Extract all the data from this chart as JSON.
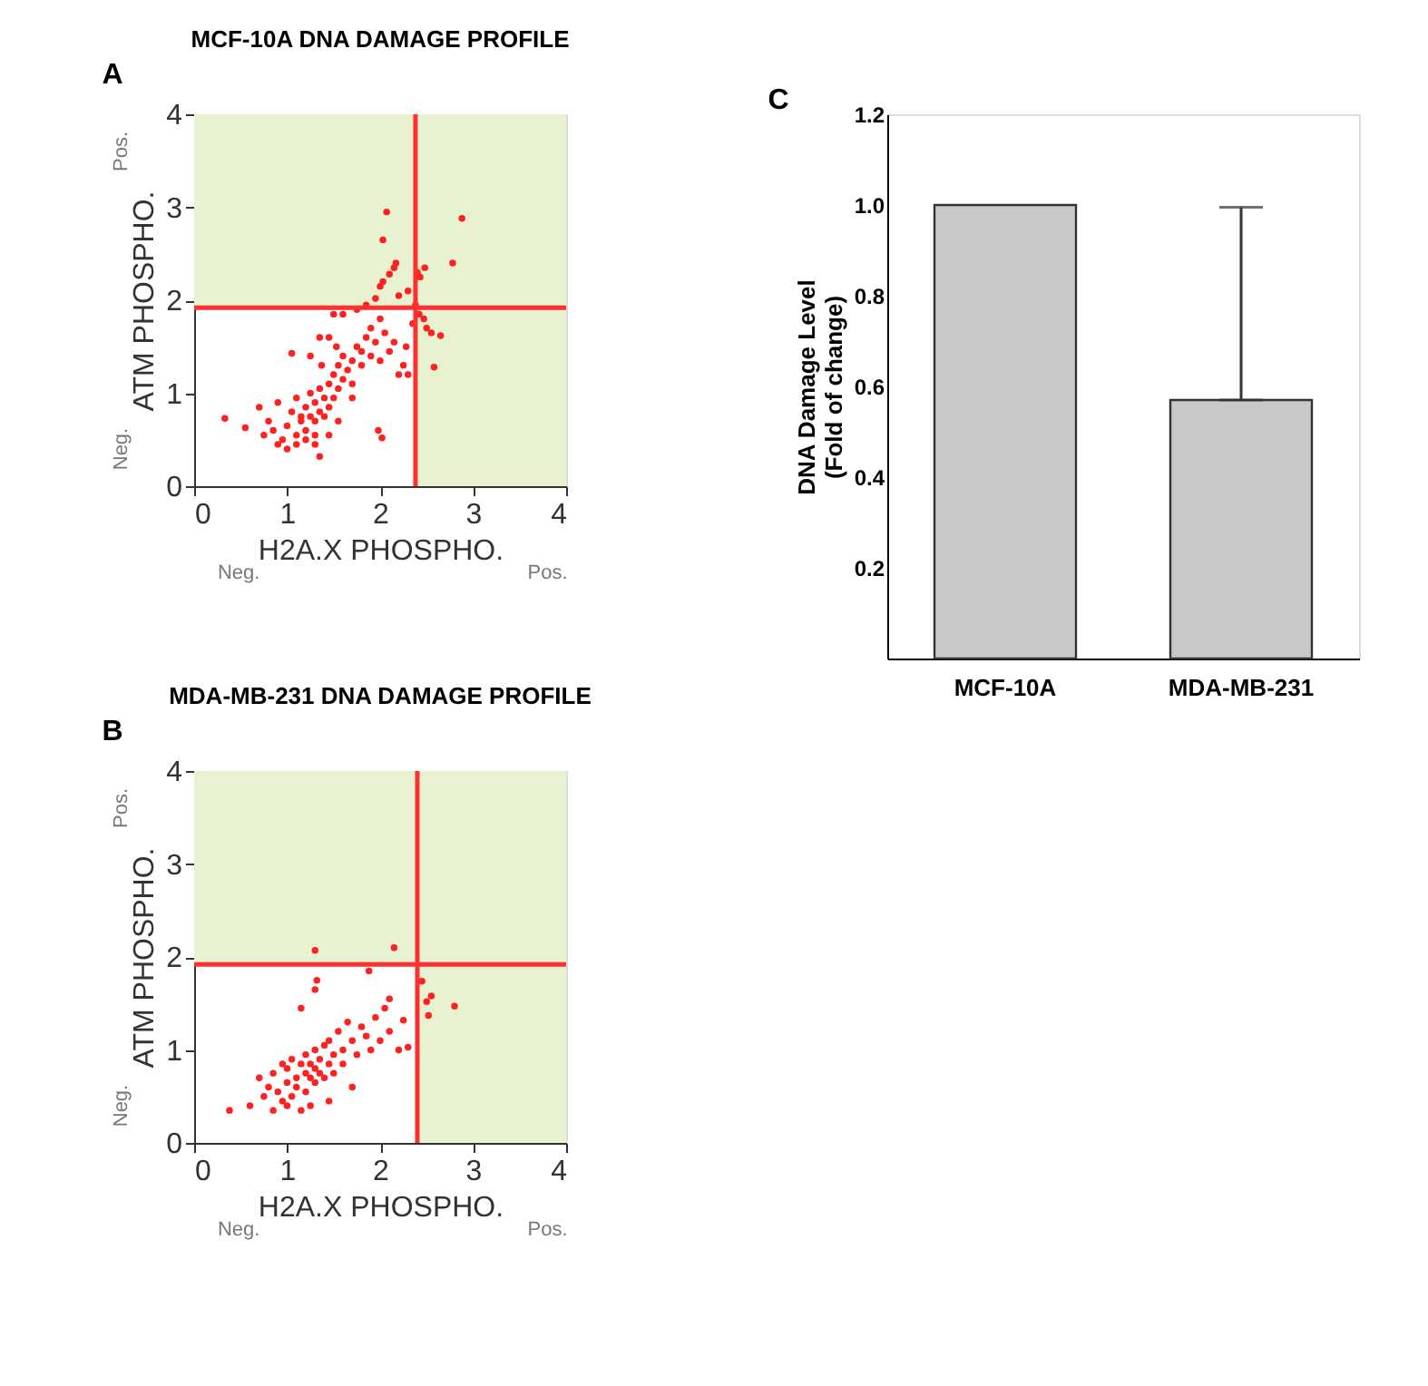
{
  "chart_data": [
    {
      "type": "scatter",
      "title": "MCF-10A DNA DAMAGE PROFILE",
      "xlabel": "H2A.X PHOSPHO.",
      "ylabel": "ATM PHOSPHO.",
      "annotations": [
        "A",
        "Neg.",
        "Pos.",
        "Neg.",
        "Pos."
      ],
      "xlim": [
        0,
        4
      ],
      "ylim": [
        0,
        4
      ],
      "xticks": [
        0,
        1,
        2,
        3,
        4
      ],
      "yticks": [
        0,
        1,
        2,
        3,
        4
      ],
      "grid": false,
      "marker": "circle",
      "ref_lines": [
        {
          "axis": "x",
          "value": 2.38,
          "color": "#ff3030"
        },
        {
          "axis": "y",
          "value": 1.92,
          "color": "#ff3030"
        }
      ],
      "bands": [
        {
          "axis": "y",
          "from": 1.92,
          "to": 4,
          "color": "#e8f2d0"
        },
        {
          "axis": "x",
          "from": 2.38,
          "to": 4,
          "color": "#e8f2d0"
        }
      ],
      "series": [
        {
          "color": "#ff2020",
          "x": [
            0.33,
            0.55,
            0.7,
            0.75,
            0.8,
            0.85,
            0.9,
            0.95,
            1.0,
            1.05,
            1.1,
            1.1,
            1.15,
            1.2,
            1.2,
            1.25,
            1.25,
            1.3,
            1.3,
            1.3,
            1.35,
            1.35,
            1.4,
            1.4,
            1.45,
            1.45,
            1.5,
            1.5,
            1.55,
            1.55,
            1.6,
            1.6,
            1.65,
            1.7,
            1.7,
            1.75,
            1.8,
            1.8,
            1.85,
            1.9,
            1.9,
            1.95,
            2.0,
            2.0,
            2.05,
            2.1,
            2.15,
            2.2,
            2.25,
            2.28,
            2.3,
            2.35,
            0.9,
            1.0,
            1.1,
            1.2,
            1.3,
            1.45,
            1.05,
            1.35,
            1.45,
            1.5,
            1.53,
            1.37,
            1.6,
            1.75,
            1.85,
            1.95,
            2.0,
            2.03,
            2.07,
            2.03,
            2.1,
            2.15,
            2.17,
            2.2,
            2.3,
            2.38,
            2.4,
            2.43,
            2.48,
            2.42,
            2.47,
            2.5,
            2.55,
            2.65,
            2.58,
            2.78,
            2.88,
            1.98,
            2.02,
            1.35,
            1.15,
            1.55,
            1.7,
            1.25
          ],
          "values": [
            0.73,
            0.63,
            0.85,
            0.55,
            0.7,
            0.6,
            0.9,
            0.5,
            0.65,
            0.8,
            0.55,
            0.95,
            0.7,
            0.85,
            0.6,
            0.75,
            1.0,
            0.9,
            0.7,
            0.55,
            0.8,
            1.05,
            0.95,
            0.75,
            1.1,
            0.85,
            1.2,
            0.95,
            1.05,
            1.3,
            1.15,
            1.4,
            1.25,
            1.35,
            1.1,
            1.5,
            1.3,
            1.45,
            1.6,
            1.4,
            1.7,
            1.55,
            1.35,
            1.8,
            1.65,
            1.45,
            1.55,
            1.2,
            1.3,
            1.5,
            1.2,
            1.75,
            0.45,
            0.4,
            0.45,
            0.5,
            0.45,
            0.55,
            1.43,
            1.6,
            1.6,
            1.85,
            1.5,
            1.3,
            1.85,
            1.9,
            1.95,
            2.02,
            2.15,
            2.2,
            2.95,
            2.65,
            2.28,
            2.35,
            2.4,
            2.05,
            2.1,
            1.95,
            2.3,
            2.25,
            2.35,
            1.85,
            1.8,
            1.7,
            1.65,
            1.62,
            1.28,
            2.4,
            2.88,
            0.6,
            0.52,
            0.32,
            0.75,
            0.7,
            0.95,
            1.4
          ]
        }
      ]
    },
    {
      "type": "scatter",
      "title": "MDA-MB-231 DNA DAMAGE PROFILE",
      "xlabel": "H2A.X PHOSPHO.",
      "ylabel": "ATM PHOSPHO.",
      "annotations": [
        "B",
        "Neg.",
        "Pos.",
        "Neg.",
        "Pos."
      ],
      "xlim": [
        0,
        4
      ],
      "ylim": [
        0,
        4
      ],
      "xticks": [
        0,
        1,
        2,
        3,
        4
      ],
      "yticks": [
        0,
        1,
        2,
        3,
        4
      ],
      "grid": false,
      "marker": "circle",
      "ref_lines": [
        {
          "axis": "x",
          "value": 2.4,
          "color": "#ff3030"
        },
        {
          "axis": "y",
          "value": 1.92,
          "color": "#ff3030"
        }
      ],
      "bands": [
        {
          "axis": "y",
          "from": 1.92,
          "to": 4,
          "color": "#e8f2d0"
        },
        {
          "axis": "x",
          "from": 2.4,
          "to": 4,
          "color": "#e8f2d0"
        }
      ],
      "series": [
        {
          "color": "#ff2020",
          "x": [
            0.38,
            0.6,
            0.7,
            0.75,
            0.8,
            0.85,
            0.9,
            0.95,
            0.95,
            1.0,
            1.0,
            1.05,
            1.05,
            1.1,
            1.1,
            1.15,
            1.15,
            1.2,
            1.2,
            1.2,
            1.25,
            1.25,
            1.3,
            1.3,
            1.3,
            1.35,
            1.35,
            1.4,
            1.4,
            1.45,
            1.45,
            1.5,
            1.5,
            1.55,
            1.6,
            1.6,
            1.65,
            1.7,
            1.75,
            1.8,
            1.85,
            1.9,
            1.95,
            2.0,
            2.1,
            2.2,
            2.3,
            1.15,
            1.3,
            1.32,
            1.88,
            1.3,
            2.15,
            2.05,
            2.1,
            2.25,
            2.45,
            2.55,
            2.5,
            2.52,
            2.8,
            0.85,
            1.0,
            1.25,
            1.45,
            1.7
          ],
          "values": [
            0.35,
            0.4,
            0.7,
            0.5,
            0.6,
            0.75,
            0.55,
            0.85,
            0.45,
            0.65,
            0.8,
            0.5,
            0.9,
            0.7,
            0.6,
            0.85,
            0.35,
            0.75,
            0.95,
            0.55,
            0.7,
            0.85,
            0.65,
            0.8,
            1.0,
            0.75,
            0.9,
            0.7,
            1.05,
            0.85,
            1.1,
            0.95,
            0.75,
            1.2,
            1.0,
            0.85,
            1.3,
            1.1,
            0.95,
            1.25,
            1.15,
            1.0,
            1.35,
            1.1,
            1.2,
            1.0,
            1.03,
            1.45,
            1.65,
            1.75,
            1.85,
            2.07,
            2.1,
            1.45,
            1.55,
            1.32,
            1.74,
            1.58,
            1.52,
            1.37,
            1.47,
            0.35,
            0.4,
            0.4,
            0.45,
            0.6
          ]
        }
      ]
    },
    {
      "type": "bar",
      "ylabel": "DNA Damage Level\n(Fold of change)",
      "annotations": [
        "C"
      ],
      "categories": [
        "MCF-10A",
        "MDA-MB-231"
      ],
      "values": [
        1.0,
        0.57
      ],
      "color": "#c8c8c8",
      "errors": [
        null,
        [
          0.57,
          0.995
        ]
      ],
      "ylim": [
        0,
        1.2
      ],
      "yticks": [
        0.2,
        0.4,
        0.6,
        0.8,
        {
          "value": 1,
          "label": "1.0"
        },
        1.2
      ],
      "grid": false
    }
  ]
}
